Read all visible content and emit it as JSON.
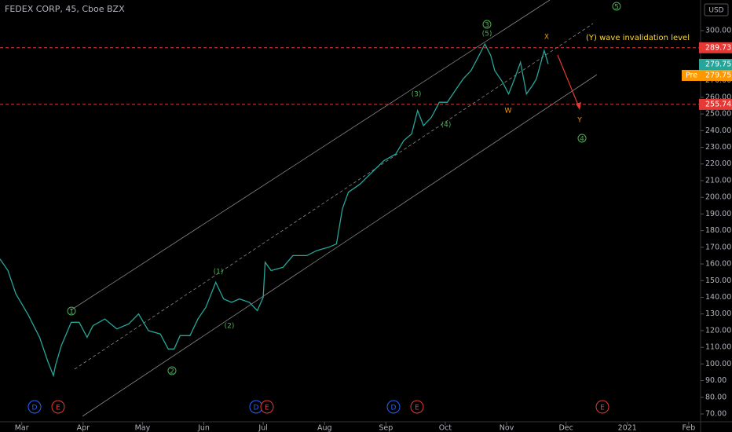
{
  "chart_data": {
    "type": "line",
    "title": "FEDEX CORP, 45, Cboe BZX",
    "currency": "USD",
    "x": [
      -11,
      -7,
      -3,
      3,
      9,
      13,
      16,
      17,
      20,
      25,
      29,
      33,
      36,
      42,
      48,
      54,
      59,
      64,
      70,
      74,
      77,
      80,
      85,
      89,
      93,
      98,
      102,
      106,
      110,
      115,
      119,
      122,
      123,
      126,
      132,
      137,
      144,
      149,
      155,
      159,
      162,
      165,
      171,
      177,
      183,
      189,
      193,
      197,
      200,
      203,
      207,
      211,
      215,
      219,
      223,
      227,
      231,
      234,
      237,
      239,
      243,
      246,
      249,
      252,
      255,
      258,
      260,
      264,
      266
    ],
    "values": [
      163,
      156,
      142,
      130,
      116,
      102,
      93,
      99,
      111,
      125,
      125,
      116,
      123,
      127,
      121,
      124,
      130,
      120,
      118,
      109,
      109,
      117,
      117,
      127,
      134,
      149,
      139,
      137,
      139,
      137,
      132,
      140,
      161,
      156,
      158,
      165,
      165,
      168,
      170,
      172,
      193,
      203,
      208,
      215,
      222,
      226,
      234,
      238,
      252,
      243,
      248,
      257,
      257,
      264,
      271,
      276,
      285,
      292,
      285,
      276,
      269,
      262,
      271,
      281,
      262,
      267,
      271,
      288,
      280
    ],
    "color": "#26a69a",
    "xlim": [
      -11,
      343
    ],
    "xticks": [
      {
        "value": 0,
        "label": "Mar"
      },
      {
        "value": 31,
        "label": "Apr"
      },
      {
        "value": 61,
        "label": "May"
      },
      {
        "value": 92,
        "label": "Jun"
      },
      {
        "value": 122,
        "label": "Jul"
      },
      {
        "value": 153,
        "label": "Aug"
      },
      {
        "value": 184,
        "label": "Sep"
      },
      {
        "value": 214,
        "label": "Oct"
      },
      {
        "value": 245,
        "label": "Nov"
      },
      {
        "value": 275,
        "label": "Dec"
      },
      {
        "value": 306,
        "label": "2021"
      },
      {
        "value": 337,
        "label": "Feb"
      }
    ],
    "ylim": [
      66,
      318
    ],
    "yticks": [
      {
        "value": 70,
        "label": "70.00"
      },
      {
        "value": 80,
        "label": "80.00"
      },
      {
        "value": 90,
        "label": "90.00"
      },
      {
        "value": 100,
        "label": "100.00"
      },
      {
        "value": 110,
        "label": "110.00"
      },
      {
        "value": 120,
        "label": "120.00"
      },
      {
        "value": 130,
        "label": "130.00"
      },
      {
        "value": 140,
        "label": "140.00"
      },
      {
        "value": 150,
        "label": "150.00"
      },
      {
        "value": 160,
        "label": "160.00"
      },
      {
        "value": 170,
        "label": "170.00"
      },
      {
        "value": 180,
        "label": "180.00"
      },
      {
        "value": 190,
        "label": "190.00"
      },
      {
        "value": 200,
        "label": "200.00"
      },
      {
        "value": 210,
        "label": "210.00"
      },
      {
        "value": 220,
        "label": "220.00"
      },
      {
        "value": 230,
        "label": "230.00"
      },
      {
        "value": 240,
        "label": "240.00"
      },
      {
        "value": 250,
        "label": "250.00"
      },
      {
        "value": 260,
        "label": "260.00"
      },
      {
        "value": 270,
        "label": "270.00"
      },
      {
        "value": 280,
        "label": "280.00"
      },
      {
        "value": 290,
        "label": "290.00"
      },
      {
        "value": 300,
        "label": "300.00"
      }
    ],
    "grid": false,
    "levels": [
      289.73,
      255.74
    ],
    "level_color": "#e53935",
    "last_price": 279.75,
    "pre_market": {
      "label": "Pre",
      "value": 279.75
    },
    "annotations": {
      "invalidation": "(Y) wave invalidation level",
      "waves": [
        "1",
        "(1)",
        "2",
        "(2)",
        "(3)",
        "(4)",
        "3",
        "(5)",
        "5",
        "4"
      ],
      "corrective": [
        "W",
        "X",
        "Y"
      ],
      "events": [
        "D",
        "E",
        "D",
        "E",
        "D",
        "E",
        "E"
      ]
    }
  }
}
